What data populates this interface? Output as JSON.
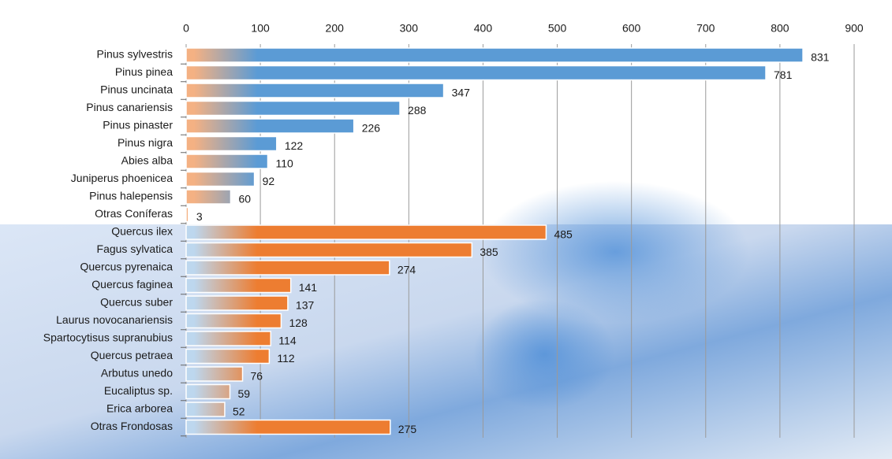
{
  "chart_data": {
    "type": "bar",
    "orientation": "horizontal",
    "categories": [
      "Pinus sylvestris",
      "Pinus pinea",
      "Pinus uncinata",
      "Pinus canariensis",
      "Pinus pinaster",
      "Pinus nigra",
      "Abies alba",
      "Juniperus phoenicea",
      "Pinus halepensis",
      "Otras Coníferas",
      "Quercus ilex",
      "Fagus sylvatica",
      "Quercus pyrenaica",
      "Quercus faginea",
      "Quercus suber",
      "Laurus novocanariensis",
      "Spartocytisus supranubius",
      "Quercus petraea",
      "Arbutus unedo",
      "Eucaliptus sp.",
      "Erica arborea",
      "Otras Frondosas"
    ],
    "values": [
      831,
      781,
      347,
      288,
      226,
      122,
      110,
      92,
      60,
      3,
      485,
      385,
      274,
      141,
      137,
      128,
      114,
      112,
      76,
      59,
      52,
      275
    ],
    "colors": [
      "#5b9bd5",
      "#5b9bd5",
      "#5b9bd5",
      "#5b9bd5",
      "#5b9bd5",
      "#5b9bd5",
      "#5b9bd5",
      "#5b9bd5",
      "#5b9bd5",
      "#5b9bd5",
      "#ed7d31",
      "#ed7d31",
      "#ed7d31",
      "#ed7d31",
      "#ed7d31",
      "#ed7d31",
      "#ed7d31",
      "#ed7d31",
      "#ed7d31",
      "#ed7d31",
      "#ed7d31",
      "#ed7d31"
    ],
    "fade_colors": [
      "#f4b183",
      "#f4b183",
      "#f4b183",
      "#f4b183",
      "#f4b183",
      "#f4b183",
      "#f4b183",
      "#f4b183",
      "#f4b183",
      "#f4b183",
      "#bdd7ee",
      "#bdd7ee",
      "#bdd7ee",
      "#bdd7ee",
      "#bdd7ee",
      "#bdd7ee",
      "#bdd7ee",
      "#bdd7ee",
      "#bdd7ee",
      "#bdd7ee",
      "#bdd7ee",
      "#bdd7ee"
    ],
    "xlim": [
      0,
      900
    ],
    "xticks": [
      0,
      100,
      200,
      300,
      400,
      500,
      600,
      700,
      800,
      900
    ],
    "grid": true
  }
}
